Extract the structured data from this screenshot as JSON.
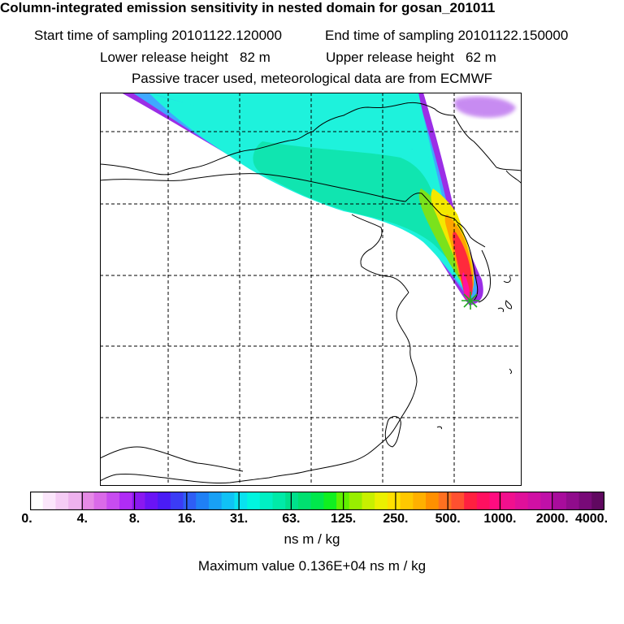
{
  "header": {
    "title": "Column-integrated emission sensitivity in nested domain for gosan_201011",
    "start_time": "Start time of sampling 20101122.120000",
    "end_time": "End time of sampling 20101122.150000",
    "lower_release": "Lower release height   82 m",
    "upper_release": "Upper release height   62 m",
    "tracer_note": "Passive tracer used, meteorological data are from ECMWF"
  },
  "colorbar": {
    "tick_labels": [
      "0.",
      "4.",
      "8.",
      "16.",
      "31.",
      "63.",
      "125.",
      "250.",
      "500.",
      "1000.",
      "2000.",
      "4000."
    ],
    "colors": [
      "#ffffff",
      "#fbe6fb",
      "#f5ccf5",
      "#eeb2ee",
      "#e68ae6",
      "#da6ae8",
      "#c84cf0",
      "#b02cf5",
      "#8a18f0",
      "#6a14f5",
      "#4a1cf5",
      "#3b3cf5",
      "#2e5ef5",
      "#1f80f5",
      "#18a0f5",
      "#10c2f5",
      "#08e2f0",
      "#00f5e0",
      "#00f0c4",
      "#00eaa8",
      "#00e08c",
      "#00e070",
      "#00e84c",
      "#10f020",
      "#60f000",
      "#98ee00",
      "#c8f000",
      "#ecf000",
      "#ffe000",
      "#ffc800",
      "#ffb000",
      "#ff9000",
      "#ff7020",
      "#ff5030",
      "#ff2040",
      "#ff1060",
      "#ff0c80",
      "#f0108e",
      "#e0109a",
      "#d010a4",
      "#c010a8",
      "#a80c9c",
      "#900c8c",
      "#780a78",
      "#600860"
    ],
    "units": "ns m / kg"
  },
  "summary": {
    "max_value": "Maximum value  0.136E+04 ns m / kg"
  },
  "map": {
    "receptor": "gosan",
    "colors": {
      "plume_edge": "#9b2ee6",
      "plume_blue": "#3fa8ff",
      "plume_cyan": "#1ef2dc",
      "plume_teal": "#10e5b0",
      "plume_green": "#7ae21c",
      "plume_yellow": "#f4e800",
      "plume_orange": "#ffa400",
      "plume_red": "#ff2a3c",
      "plume_magenta": "#ff14a0",
      "receptor_star": "#22aa22"
    }
  }
}
